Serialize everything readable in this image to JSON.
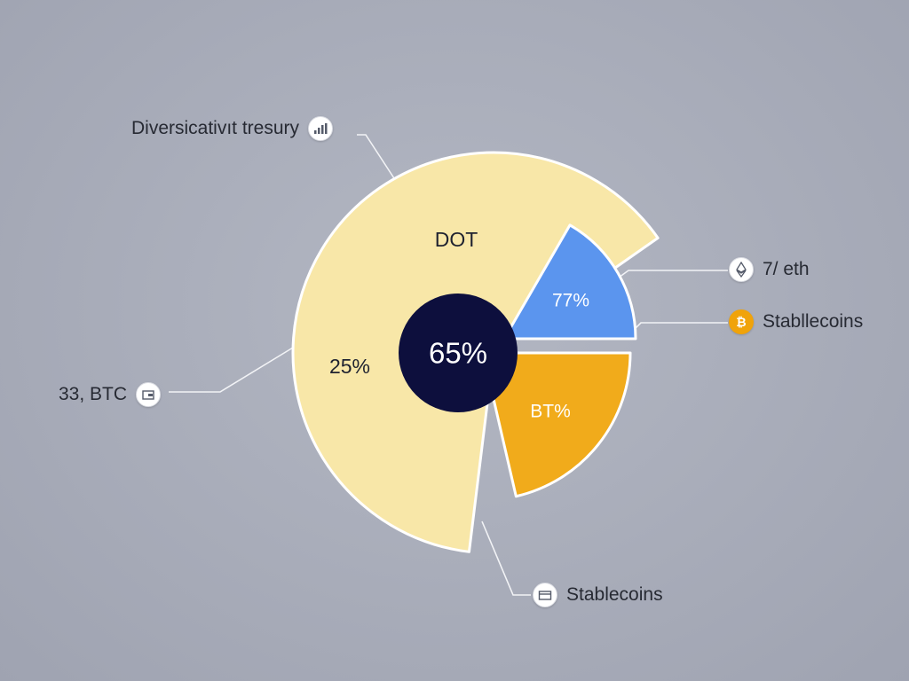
{
  "chart_data": {
    "type": "pie",
    "center_label": "65%",
    "slices": [
      {
        "label": "DOT",
        "value_label": "25%",
        "color": "#f8e7a8"
      },
      {
        "label": "",
        "value_label": "77%",
        "color": "#5b95ee"
      },
      {
        "label": "",
        "value_label": "BT%",
        "color": "#f1ab1b"
      }
    ],
    "callouts": [
      {
        "text": "Diversicativıt tresury",
        "icon": "bar-chart-icon"
      },
      {
        "text": "7/ eth",
        "icon": "ethereum-icon"
      },
      {
        "text": "Stabllecoins",
        "icon": "bitcoin-icon"
      },
      {
        "text": "33, BTC",
        "icon": "wallet-icon"
      },
      {
        "text": "Stablecoins",
        "icon": "card-icon"
      }
    ],
    "colors": {
      "center": "#0d0f3d",
      "leader_line": "#f2f3f6"
    }
  }
}
